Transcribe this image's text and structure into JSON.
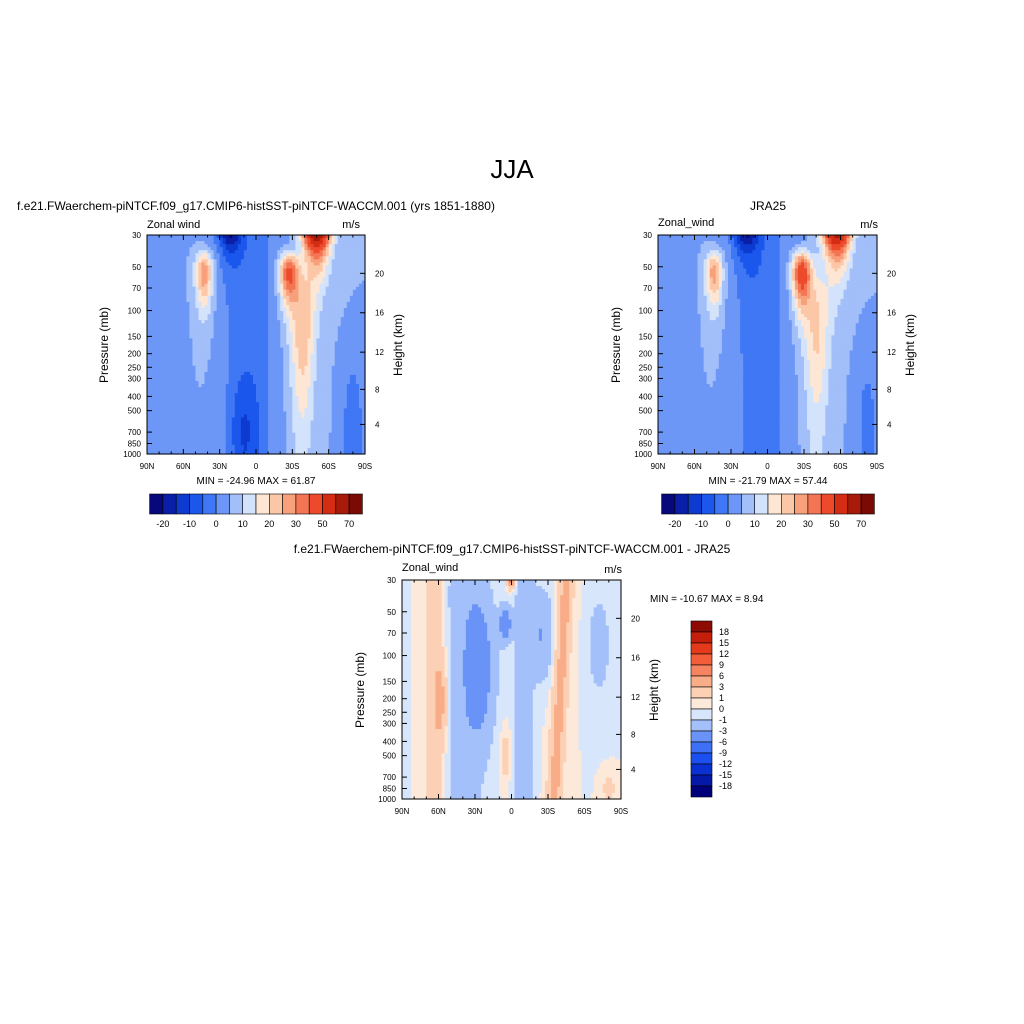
{
  "page_title": "JJA",
  "colors": {
    "model_obs_palette": [
      "#08087a",
      "#0a1fa8",
      "#0d3bd0",
      "#1b57ec",
      "#3f77f4",
      "#6c97f7",
      "#a2bffa",
      "#d3e3fb",
      "#fde6d4",
      "#fbc7a6",
      "#f8a07c",
      "#f47553",
      "#ec4a2a",
      "#d42d13",
      "#a81a0a",
      "#7a0a04"
    ],
    "diff_palette": [
      "#00007a",
      "#0618a8",
      "#0b30d2",
      "#1b4ff0",
      "#3d70f6",
      "#6a93f8",
      "#a4c0fa",
      "#d8e6fb",
      "#fde9d9",
      "#fcd0b4",
      "#f9ac88",
      "#f68462",
      "#f25d3a",
      "#e33a1c",
      "#c51f0c",
      "#8e0a04"
    ]
  },
  "chart_data": [
    {
      "type": "heatmap",
      "title": "f.e21.FWaerchem-piNTCF.f09_g17.CMIP6-histSST-piNTCF-WACCM.001 (yrs 1851-1880)",
      "left_string": "Zonal wind",
      "units": "m/s",
      "ylabel": "Pressure (mb)",
      "y2label": "Height (km)",
      "x_tick_labels": [
        "90N",
        "60N",
        "30N",
        "0",
        "30S",
        "60S",
        "90S"
      ],
      "y_tick_labels": [
        "30",
        "50",
        "70",
        "100",
        "150",
        "200",
        "250",
        "300",
        "400",
        "500",
        "700",
        "850",
        "1000"
      ],
      "y2_tick_labels": [
        "20",
        "16",
        "12",
        "8",
        "4"
      ],
      "stats": "MIN = -24.96  MAX =  61.87",
      "colorbar_labels": [
        "-20",
        "-10",
        "0",
        "10",
        "20",
        "30",
        "50",
        "70"
      ],
      "features": {
        "jet_min": -24.96,
        "jet_max": 61.87
      }
    },
    {
      "type": "heatmap",
      "title": "JRA25",
      "left_string": "Zonal_wind",
      "units": "m/s",
      "ylabel": "Pressure (mb)",
      "y2label": "Height (km)",
      "x_tick_labels": [
        "90N",
        "60N",
        "30N",
        "0",
        "30S",
        "60S",
        "90S"
      ],
      "y_tick_labels": [
        "30",
        "50",
        "70",
        "100",
        "150",
        "200",
        "250",
        "300",
        "400",
        "500",
        "700",
        "850",
        "1000"
      ],
      "y2_tick_labels": [
        "20",
        "16",
        "12",
        "8",
        "4"
      ],
      "stats": "MIN = -21.79  MAX =  57.44",
      "colorbar_labels": [
        "-20",
        "-10",
        "0",
        "10",
        "20",
        "30",
        "50",
        "70"
      ],
      "features": {
        "jet_min": -21.79,
        "jet_max": 57.44
      }
    },
    {
      "type": "heatmap",
      "title": "f.e21.FWaerchem-piNTCF.f09_g17.CMIP6-histSST-piNTCF-WACCM.001 - JRA25",
      "left_string": "Zonal_wind",
      "units": "m/s",
      "ylabel": "Pressure (mb)",
      "y2label": "Height (km)",
      "x_tick_labels": [
        "90N",
        "60N",
        "30N",
        "0",
        "30S",
        "60S",
        "90S"
      ],
      "y_tick_labels": [
        "30",
        "50",
        "70",
        "100",
        "150",
        "200",
        "250",
        "300",
        "400",
        "500",
        "700",
        "850",
        "1000"
      ],
      "y2_tick_labels": [
        "20",
        "16",
        "12",
        "8",
        "4"
      ],
      "stats": "MIN = -10.67  MAX =   8.94",
      "colorbar_labels": [
        "18",
        "15",
        "12",
        "9",
        "6",
        "3",
        "1",
        "0",
        "-1",
        "-3",
        "-6",
        "-9",
        "-12",
        "-15",
        "-18"
      ],
      "features": {
        "diff_min": -10.67,
        "diff_max": 8.94
      }
    }
  ]
}
